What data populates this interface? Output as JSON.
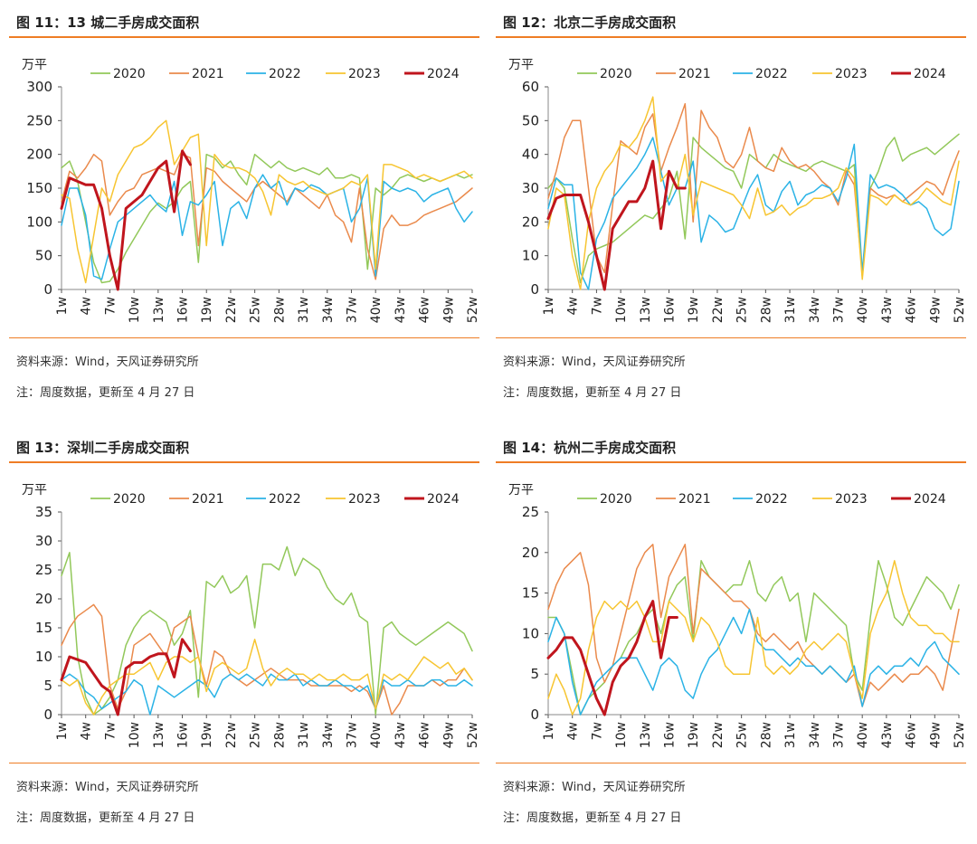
{
  "source_label": "资料来源：Wind，天风证券研究所",
  "note_label": "注：周度数据，更新至 4 月 27 日",
  "unit_label": "万平",
  "x_ticks": [
    "1w",
    "4w",
    "7w",
    "10w",
    "13w",
    "16w",
    "19w",
    "22w",
    "25w",
    "28w",
    "31w",
    "34w",
    "37w",
    "40w",
    "43w",
    "46w",
    "49w",
    "52w"
  ],
  "series_colors": {
    "2020": "#92c85a",
    "2021": "#ea8a4c",
    "2022": "#2bb3e6",
    "2023": "#f7c531",
    "2024": "#c0151d"
  },
  "chart_data": [
    {
      "title": "图 11：13 城二手房成交面积",
      "type": "line",
      "ylim": [
        0,
        300
      ],
      "yticks": [
        0,
        50,
        100,
        150,
        200,
        250,
        300
      ],
      "legend_position": "top",
      "series": [
        {
          "name": "2020",
          "values": [
            180,
            190,
            160,
            100,
            40,
            10,
            12,
            30,
            55,
            75,
            95,
            115,
            128,
            120,
            130,
            150,
            160,
            40,
            200,
            195,
            180,
            190,
            170,
            155,
            200,
            190,
            180,
            190,
            180,
            175,
            180,
            175,
            170,
            180,
            165,
            165,
            170,
            165,
            30,
            150,
            140,
            150,
            165,
            170,
            165,
            160,
            165,
            160,
            165,
            170,
            165,
            170
          ]
        },
        {
          "name": "2021",
          "values": [
            130,
            175,
            165,
            180,
            200,
            190,
            110,
            130,
            145,
            150,
            170,
            175,
            180,
            175,
            170,
            200,
            195,
            65,
            180,
            175,
            160,
            150,
            140,
            130,
            150,
            160,
            150,
            140,
            130,
            150,
            140,
            130,
            120,
            140,
            110,
            100,
            70,
            150,
            60,
            15,
            90,
            110,
            95,
            95,
            100,
            110,
            115,
            120,
            125,
            130,
            140,
            150
          ]
        },
        {
          "name": "2022",
          "values": [
            95,
            150,
            150,
            110,
            20,
            15,
            60,
            100,
            110,
            120,
            130,
            140,
            125,
            115,
            160,
            80,
            130,
            125,
            140,
            160,
            65,
            120,
            130,
            105,
            150,
            170,
            150,
            160,
            125,
            150,
            145,
            155,
            150,
            140,
            145,
            150,
            100,
            120,
            165,
            20,
            160,
            150,
            145,
            150,
            145,
            130,
            140,
            145,
            150,
            120,
            100,
            115
          ]
        },
        {
          "name": "2023",
          "values": [
            140,
            135,
            60,
            10,
            80,
            150,
            130,
            170,
            190,
            210,
            215,
            225,
            240,
            250,
            185,
            205,
            225,
            230,
            65,
            200,
            185,
            180,
            180,
            175,
            165,
            145,
            110,
            170,
            160,
            155,
            160,
            150,
            145,
            140,
            145,
            150,
            160,
            155,
            170,
            30,
            185,
            185,
            180,
            175,
            165,
            170,
            165,
            160,
            165,
            170,
            175,
            165
          ]
        },
        {
          "name": "2024",
          "values": [
            120,
            165,
            160,
            155,
            155,
            120,
            50,
            0,
            120,
            130,
            140,
            160,
            180,
            190,
            115,
            205,
            185
          ]
        }
      ]
    },
    {
      "title": "图 12：北京二手房成交面积",
      "type": "line",
      "ylim": [
        0,
        60
      ],
      "yticks": [
        0,
        10,
        20,
        30,
        40,
        50,
        60
      ],
      "legend_position": "top",
      "series": [
        {
          "name": "2020",
          "values": [
            30,
            33,
            30,
            15,
            2,
            10,
            12,
            13,
            14,
            16,
            18,
            20,
            22,
            21,
            24,
            27,
            35,
            15,
            45,
            42,
            40,
            38,
            36,
            35,
            30,
            40,
            38,
            36,
            40,
            38,
            37,
            36,
            35,
            37,
            38,
            37,
            36,
            35,
            37,
            4,
            30,
            35,
            42,
            45,
            38,
            40,
            41,
            42,
            40,
            42,
            44,
            46
          ]
        },
        {
          "name": "2021",
          "values": [
            27,
            35,
            45,
            50,
            50,
            30,
            10,
            5,
            25,
            44,
            42,
            40,
            48,
            52,
            35,
            42,
            48,
            55,
            20,
            53,
            48,
            45,
            38,
            36,
            40,
            48,
            38,
            36,
            35,
            42,
            38,
            36,
            37,
            35,
            32,
            30,
            25,
            35,
            31,
            5,
            30,
            28,
            27,
            28,
            26,
            28,
            30,
            32,
            31,
            28,
            35,
            41
          ]
        },
        {
          "name": "2022",
          "values": [
            24,
            33,
            31,
            31,
            5,
            0,
            15,
            20,
            27,
            30,
            33,
            36,
            40,
            45,
            35,
            25,
            30,
            30,
            38,
            14,
            22,
            20,
            17,
            18,
            24,
            30,
            34,
            25,
            23,
            29,
            32,
            25,
            28,
            29,
            31,
            30,
            26,
            33,
            43,
            5,
            34,
            30,
            31,
            30,
            28,
            25,
            26,
            24,
            18,
            16,
            18,
            32
          ]
        },
        {
          "name": "2023",
          "values": [
            18,
            30,
            28,
            10,
            0,
            20,
            30,
            35,
            38,
            43,
            42,
            45,
            50,
            57,
            32,
            35,
            30,
            40,
            22,
            32,
            31,
            30,
            29,
            28,
            25,
            21,
            30,
            22,
            23,
            25,
            22,
            24,
            25,
            27,
            27,
            28,
            30,
            36,
            33,
            3,
            28,
            27,
            25,
            28,
            26,
            25,
            27,
            30,
            28,
            26,
            25,
            38
          ]
        },
        {
          "name": "2024",
          "values": [
            21,
            27,
            28,
            28,
            28,
            20,
            10,
            0,
            18,
            22,
            26,
            26,
            30,
            38,
            18,
            35,
            30,
            30
          ]
        }
      ]
    },
    {
      "title": "图 13：深圳二手房成交面积",
      "type": "line",
      "ylim": [
        0,
        35
      ],
      "yticks": [
        0,
        5,
        10,
        15,
        20,
        25,
        30,
        35
      ],
      "legend_position": "top",
      "series": [
        {
          "name": "2020",
          "values": [
            24,
            28,
            10,
            3,
            0,
            1,
            3,
            6,
            12,
            15,
            17,
            18,
            17,
            16,
            12,
            14,
            18,
            3,
            23,
            22,
            24,
            21,
            22,
            24,
            15,
            26,
            26,
            25,
            29,
            24,
            27,
            26,
            25,
            22,
            20,
            19,
            21,
            17,
            16,
            0,
            15,
            16,
            14,
            13,
            12,
            13,
            14,
            15,
            16,
            15,
            14,
            11
          ]
        },
        {
          "name": "2021",
          "values": [
            12,
            15,
            17,
            18,
            19,
            17,
            5,
            1,
            4,
            12,
            13,
            14,
            12,
            10,
            15,
            16,
            17,
            10,
            5,
            11,
            10,
            7,
            6,
            5,
            6,
            7,
            8,
            7,
            6,
            6,
            6,
            5,
            5,
            5,
            5,
            5,
            4,
            5,
            4,
            1,
            5,
            0,
            2,
            5,
            5,
            5,
            6,
            5,
            6,
            6,
            8,
            6
          ]
        },
        {
          "name": "2022",
          "values": [
            6,
            7,
            6,
            4,
            3,
            1,
            2,
            3,
            4,
            6,
            5,
            0,
            5,
            4,
            3,
            4,
            5,
            6,
            5,
            3,
            6,
            7,
            6,
            7,
            6,
            5,
            7,
            6,
            6,
            7,
            5,
            6,
            5,
            5,
            6,
            5,
            5,
            4,
            5,
            1,
            6,
            5,
            5,
            6,
            5,
            5,
            6,
            6,
            5,
            5,
            6,
            5
          ]
        },
        {
          "name": "2023",
          "values": [
            6,
            5,
            6,
            2,
            0,
            3,
            5,
            6,
            7,
            7,
            8,
            9,
            6,
            9,
            10,
            10,
            9,
            10,
            4,
            8,
            9,
            8,
            7,
            8,
            13,
            8,
            5,
            7,
            8,
            7,
            7,
            6,
            7,
            6,
            6,
            7,
            6,
            6,
            7,
            1,
            7,
            6,
            7,
            6,
            8,
            10,
            9,
            8,
            9,
            7,
            8,
            6
          ]
        },
        {
          "name": "2024",
          "values": [
            6,
            10,
            9.5,
            9,
            7,
            5,
            4,
            0,
            8,
            9,
            9,
            10,
            10.5,
            10.5,
            6.5,
            13,
            11
          ]
        }
      ]
    },
    {
      "title": "图 14：杭州二手房成交面积",
      "type": "line",
      "ylim": [
        0,
        25
      ],
      "yticks": [
        0,
        5,
        10,
        15,
        20,
        25
      ],
      "legend_position": "top",
      "series": [
        {
          "name": "2020",
          "values": [
            12,
            12,
            10,
            5,
            0,
            2,
            3,
            4,
            6,
            7,
            9,
            10,
            12,
            13,
            10,
            14,
            16,
            17,
            9,
            19,
            17,
            16,
            15,
            16,
            16,
            19,
            15,
            14,
            16,
            17,
            14,
            15,
            9,
            15,
            14,
            13,
            12,
            11,
            5,
            3,
            12,
            19,
            16,
            12,
            11,
            13,
            15,
            17,
            16,
            15,
            13,
            16
          ]
        },
        {
          "name": "2021",
          "values": [
            13,
            16,
            18,
            19,
            20,
            16,
            7,
            4,
            6,
            10,
            14,
            18,
            20,
            21,
            12,
            17,
            19,
            21,
            10,
            18,
            17,
            16,
            15,
            14,
            14,
            13,
            10,
            9,
            10,
            9,
            8,
            9,
            7,
            6,
            5,
            6,
            5,
            4,
            5,
            1,
            4,
            3,
            4,
            5,
            4,
            5,
            5,
            6,
            5,
            3,
            8,
            13
          ]
        },
        {
          "name": "2022",
          "values": [
            9,
            12,
            10,
            4,
            0,
            2,
            4,
            5,
            6,
            7,
            7,
            7,
            5,
            3,
            6,
            7,
            6,
            3,
            2,
            5,
            7,
            8,
            10,
            12,
            10,
            13,
            9,
            8,
            8,
            7,
            6,
            7,
            6,
            6,
            5,
            6,
            5,
            4,
            6,
            1,
            5,
            6,
            5,
            6,
            6,
            7,
            6,
            8,
            9,
            7,
            6,
            5
          ]
        },
        {
          "name": "2023",
          "values": [
            2,
            5,
            3,
            0,
            2,
            8,
            12,
            14,
            13,
            14,
            13,
            14,
            12,
            9,
            9,
            14,
            13,
            12,
            9,
            12,
            11,
            9,
            6,
            5,
            5,
            5,
            12,
            6,
            5,
            6,
            5,
            6,
            8,
            9,
            8,
            9,
            10,
            9,
            5,
            2,
            10,
            13,
            15,
            19,
            15,
            12,
            11,
            11,
            10,
            10,
            9,
            9
          ]
        },
        {
          "name": "2024",
          "values": [
            7,
            8,
            9.5,
            9.5,
            8,
            5,
            2,
            0,
            4,
            6,
            7,
            9,
            12,
            14,
            7,
            12,
            12
          ]
        }
      ]
    }
  ]
}
